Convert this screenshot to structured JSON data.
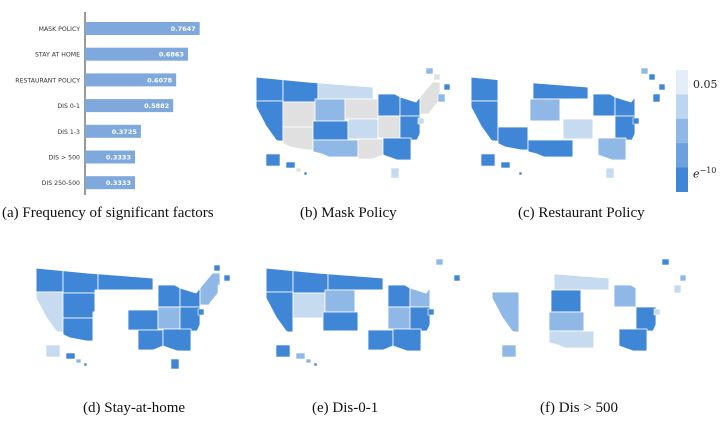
{
  "chart_data": [
    {
      "type": "bar",
      "orientation": "horizontal",
      "categories": [
        "MASK POLICY",
        "STAY AT HOME",
        "RESTAURANT POLICY",
        "DIS 0-1",
        "DIS 1-3",
        "DIS > 500",
        "DIS 250-500"
      ],
      "values": [
        0.7647,
        0.6863,
        0.6078,
        0.5882,
        0.3725,
        0.3333,
        0.3333
      ],
      "value_labels": [
        "0.7647",
        "0.6863",
        "0.6078",
        "0.5882",
        "0.3725",
        "0.3333",
        "0.3333"
      ],
      "xlim": [
        0,
        1
      ],
      "bar_color": "#7fa8dc",
      "caption": "(a) Frequency of significant factors"
    },
    {
      "type": "heatmap",
      "subtype": "choropleth",
      "caption": "(b) Mask Policy",
      "fills": [
        "#3f86d6",
        "#3f86d6",
        "#c6dbf0",
        "#3f86d6",
        "#e0e0e0",
        "#8fb8e6",
        "#e0e0e0",
        "#3f86d6",
        "#3f86d6",
        "#e0e0e0",
        "#e0e0e0",
        "#3f86d6",
        "#c6dbf0",
        "#e0e0e0",
        "#3f86d6",
        "#8fb8e6",
        "#e0e0e0",
        "#3f86d6"
      ]
    },
    {
      "type": "heatmap",
      "subtype": "choropleth",
      "caption": "(c) Restaurant Policy",
      "fills": [
        "#3f86d6",
        "#ffffff",
        "#3f86d6",
        "#3f86d6",
        "#ffffff",
        "#8fb8e6",
        "#ffffff",
        "#3f86d6",
        "#3f86d6",
        "#ffffff",
        "#3f86d6",
        "#ffffff",
        "#c6dbf0",
        "#ffffff",
        "#3f86d6",
        "#3f86d6",
        "#ffffff",
        "#8fb8e6"
      ]
    },
    {
      "type": "heatmap",
      "subtype": "choropleth",
      "caption": "(d) Stay-at-home",
      "fills": [
        "#3f86d6",
        "#3f86d6",
        "#3f86d6",
        "#c6dbf0",
        "#3f86d6",
        "#ffffff",
        "#ffffff",
        "#3f86d6",
        "#3f86d6",
        "#8fb8e6",
        "#3f86d6",
        "#ffffff",
        "#3f86d6",
        "#8fb8e6",
        "#3f86d6",
        "#ffffff",
        "#3f86d6",
        "#3f86d6"
      ]
    },
    {
      "type": "heatmap",
      "subtype": "choropleth",
      "caption": "(e) Dis-0-1",
      "fills": [
        "#3f86d6",
        "#3f86d6",
        "#3f86d6",
        "#3f86d6",
        "#c6dbf0",
        "#8fb8e6",
        "#ffffff",
        "#3f86d6",
        "#8fb8e6",
        "#ffffff",
        "#ffffff",
        "#3f86d6",
        "#ffffff",
        "#8fb8e6",
        "#3f86d6",
        "#ffffff",
        "#3f86d6",
        "#3f86d6"
      ]
    },
    {
      "type": "heatmap",
      "subtype": "choropleth",
      "caption": "(f) Dis > 500",
      "fills": [
        "#ffffff",
        "#ffffff",
        "#c6dbf0",
        "#8fb8e6",
        "#ffffff",
        "#3f86d6",
        "#ffffff",
        "#8fb8e6",
        "#ffffff",
        "#ffffff",
        "#ffffff",
        "#8fb8e6",
        "#ffffff",
        "#ffffff",
        "#3f86d6",
        "#c6dbf0",
        "#ffffff",
        "#3f86d6"
      ]
    }
  ],
  "legend": {
    "type": "color-scale",
    "max_label": "0.05",
    "min_label": "e^{-10}",
    "min_base": "e",
    "min_exp": "−10",
    "colors": [
      "#e3eef9",
      "#bcd6ef",
      "#8fb8e6",
      "#6aa1de",
      "#3f86d6"
    ]
  }
}
